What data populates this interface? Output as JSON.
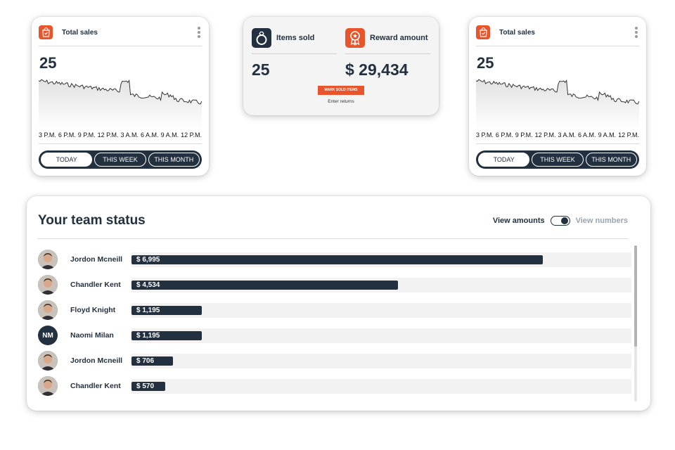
{
  "sales_cards": [
    {
      "title": "Total sales",
      "value": "25",
      "xticks": [
        "3 P.M.",
        "6 P.M.",
        "9 P.M.",
        "12 P.M.",
        "3 A.M.",
        "6 A.M.",
        "9 A.M.",
        "12 P.M."
      ],
      "tabs": [
        "TODAY",
        "THIS WEEK",
        "THIS MONTH"
      ],
      "active_tab": "TODAY"
    },
    {
      "title": "Total sales",
      "value": "25",
      "xticks": [
        "3 P.M.",
        "6 P.M.",
        "9 P.M.",
        "12 P.M.",
        "3 A.M.",
        "6 A.M.",
        "9 A.M.",
        "12 P.M."
      ],
      "tabs": [
        "TODAY",
        "THIS WEEK",
        "THIS MONTH"
      ],
      "active_tab": "TODAY"
    }
  ],
  "summary": {
    "items_sold_label": "Items sold",
    "items_sold_value": "25",
    "reward_label": "Reward amount",
    "reward_value": "$ 29,434",
    "mark_button": "MARK SOLD ITEMS",
    "enter_returns": "Enter returns"
  },
  "team": {
    "title": "Your team status",
    "toggle_left": "View amounts",
    "toggle_right": "View numbers",
    "members": [
      {
        "name": "Jordon Mcneill",
        "amount": "$ 6,995",
        "value": 6995,
        "avatar": "photo"
      },
      {
        "name": "Chandler Kent",
        "amount": "$ 4,534",
        "value": 4534,
        "avatar": "photo"
      },
      {
        "name": "Floyd Knight",
        "amount": "$ 1,195",
        "value": 1195,
        "avatar": "photo"
      },
      {
        "name": "Naomi Milan",
        "amount": "$ 1,195",
        "value": 1195,
        "avatar": "initials",
        "initials": "NM"
      },
      {
        "name": "Jordon Mcneill",
        "amount": "$ 706",
        "value": 706,
        "avatar": "photo"
      },
      {
        "name": "Chandler Kent",
        "amount": "$ 570",
        "value": 570,
        "avatar": "photo"
      }
    ],
    "max_value": 8500
  },
  "colors": {
    "accent": "#e8542b",
    "navy": "#22303f",
    "track": "#f2f2f2"
  },
  "icons": {
    "sales": "shopping-bag-icon",
    "items": "ring-icon",
    "reward": "award-ribbon-icon",
    "menu": "kebab-menu-icon"
  }
}
